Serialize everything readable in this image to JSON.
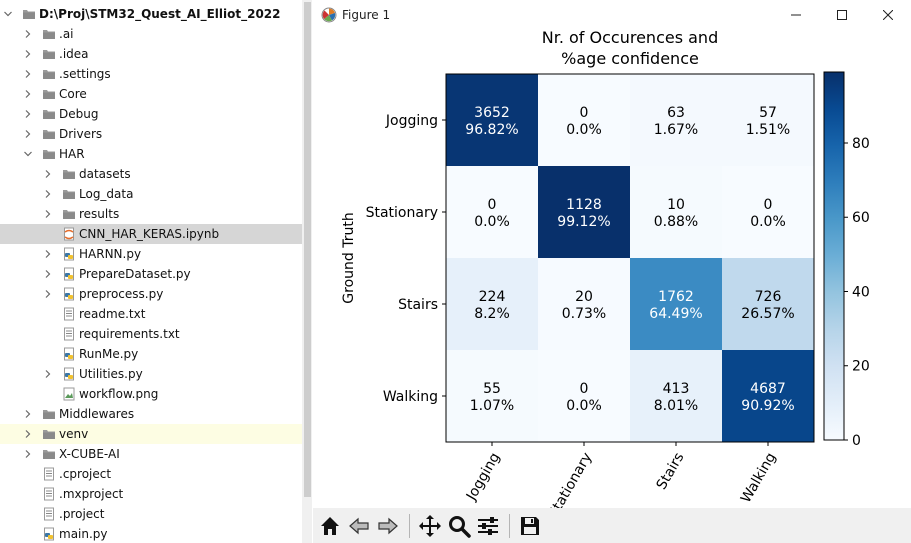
{
  "file_tree": {
    "items": [
      {
        "label": "D:\\Proj\\STM32_Quest_AI_Elliot_2022",
        "depth": 0,
        "chevron": "down",
        "icon": "project-folder-icon",
        "root": true
      },
      {
        "label": ".ai",
        "depth": 1,
        "chevron": "right",
        "icon": "folder-icon"
      },
      {
        "label": ".idea",
        "depth": 1,
        "chevron": "right",
        "icon": "folder-icon"
      },
      {
        "label": ".settings",
        "depth": 1,
        "chevron": "right",
        "icon": "folder-icon"
      },
      {
        "label": "Core",
        "depth": 1,
        "chevron": "right",
        "icon": "folder-icon"
      },
      {
        "label": "Debug",
        "depth": 1,
        "chevron": "right",
        "icon": "folder-icon"
      },
      {
        "label": "Drivers",
        "depth": 1,
        "chevron": "right",
        "icon": "folder-icon"
      },
      {
        "label": "HAR",
        "depth": 1,
        "chevron": "down",
        "icon": "folder-icon"
      },
      {
        "label": "datasets",
        "depth": 2,
        "chevron": "right",
        "icon": "folder-icon"
      },
      {
        "label": "Log_data",
        "depth": 2,
        "chevron": "right",
        "icon": "folder-icon"
      },
      {
        "label": "results",
        "depth": 2,
        "chevron": "right",
        "icon": "folder-icon"
      },
      {
        "label": "CNN_HAR_KERAS.ipynb",
        "depth": 2,
        "chevron": "none",
        "icon": "notebook-file-icon",
        "selected": true
      },
      {
        "label": "HARNN.py",
        "depth": 2,
        "chevron": "right",
        "icon": "python-file-icon"
      },
      {
        "label": "PrepareDataset.py",
        "depth": 2,
        "chevron": "right",
        "icon": "python-file-icon"
      },
      {
        "label": "preprocess.py",
        "depth": 2,
        "chevron": "right",
        "icon": "python-file-icon"
      },
      {
        "label": "readme.txt",
        "depth": 2,
        "chevron": "none",
        "icon": "text-file-icon"
      },
      {
        "label": "requirements.txt",
        "depth": 2,
        "chevron": "none",
        "icon": "text-file-icon"
      },
      {
        "label": "RunMe.py",
        "depth": 2,
        "chevron": "none",
        "icon": "python-file-icon"
      },
      {
        "label": "Utilities.py",
        "depth": 2,
        "chevron": "right",
        "icon": "python-file-icon"
      },
      {
        "label": "workflow.png",
        "depth": 2,
        "chevron": "none",
        "icon": "image-file-icon"
      },
      {
        "label": "Middlewares",
        "depth": 1,
        "chevron": "right",
        "icon": "folder-icon"
      },
      {
        "label": "venv",
        "depth": 1,
        "chevron": "right",
        "icon": "venv-folder-icon",
        "highlighted": true
      },
      {
        "label": "X-CUBE-AI",
        "depth": 1,
        "chevron": "right",
        "icon": "folder-icon"
      },
      {
        "label": ".cproject",
        "depth": 1,
        "chevron": "none",
        "icon": "text-file-icon"
      },
      {
        "label": ".mxproject",
        "depth": 1,
        "chevron": "none",
        "icon": "text-file-icon"
      },
      {
        "label": ".project",
        "depth": 1,
        "chevron": "none",
        "icon": "text-file-icon"
      },
      {
        "label": "main.py",
        "depth": 1,
        "chevron": "none",
        "icon": "python-file-icon"
      }
    ]
  },
  "window": {
    "title": "Figure 1",
    "app_icon": "matplotlib-icon",
    "minimize_icon": "minimize-icon",
    "maximize_icon": "maximize-icon",
    "close_icon": "close-icon"
  },
  "toolbar": {
    "buttons": [
      "home-icon",
      "back-icon",
      "forward-icon",
      "pan-icon",
      "zoom-icon",
      "configure-subplots-icon",
      "save-icon"
    ]
  },
  "chart_data": {
    "type": "heatmap",
    "title": "Nr. of Occurences and\n%age confidence",
    "ylabel": "Ground Truth",
    "xlabel": "",
    "rows": [
      "Jogging",
      "Stationary",
      "Stairs",
      "Walking"
    ],
    "columns": [
      "Jogging",
      "Stationary",
      "Stairs",
      "Walking"
    ],
    "counts": [
      [
        3652,
        0,
        63,
        57
      ],
      [
        0,
        1128,
        10,
        0
      ],
      [
        224,
        20,
        1762,
        726
      ],
      [
        55,
        0,
        413,
        4687
      ]
    ],
    "percentages": [
      [
        "96.82%",
        "0.0%",
        "1.67%",
        "1.51%"
      ],
      [
        "0.0%",
        "99.12%",
        "0.88%",
        "0.0%"
      ],
      [
        "8.2%",
        "0.73%",
        "64.49%",
        "26.57%"
      ],
      [
        "1.07%",
        "0.0%",
        "8.01%",
        "90.92%"
      ]
    ],
    "percent_values": [
      [
        96.82,
        0.0,
        1.67,
        1.51
      ],
      [
        0.0,
        99.12,
        0.88,
        0.0
      ],
      [
        8.2,
        0.73,
        64.49,
        26.57
      ],
      [
        1.07,
        0.0,
        8.01,
        90.92
      ]
    ],
    "colormap": "Blues",
    "colorbar": {
      "min": 0,
      "max": 99.12,
      "ticks": [
        0,
        20,
        40,
        60,
        80
      ]
    },
    "x_tick_rotation": "diagonal"
  }
}
